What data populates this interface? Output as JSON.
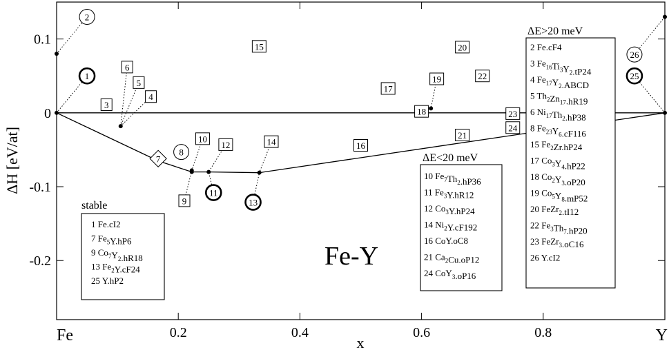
{
  "chart_data": {
    "type": "scatter",
    "title": "Fe-Y",
    "xlabel": "x",
    "ylabel": "ΔH [eV/at]",
    "xlim": [
      0,
      1
    ],
    "ylim": [
      -0.28,
      0.15
    ],
    "x_ticks": [
      {
        "value": 0.2,
        "label": "0.2"
      },
      {
        "value": 0.4,
        "label": "0.4"
      },
      {
        "value": 0.6,
        "label": "0.6"
      },
      {
        "value": 0.8,
        "label": "0.8"
      }
    ],
    "x_edge_labels": [
      {
        "value": 0,
        "label": "Fe"
      },
      {
        "value": 1,
        "label": "Y"
      }
    ],
    "y_ticks": [
      {
        "value": 0.1,
        "label": "0.1"
      },
      {
        "value": 0,
        "label": "0"
      },
      {
        "value": -0.1,
        "label": "-0.1"
      },
      {
        "value": -0.2,
        "label": "-0.2"
      }
    ],
    "grid": false,
    "convex_hull": [
      [
        0,
        0
      ],
      [
        0.1667,
        -0.065
      ],
      [
        0.2222,
        -0.08
      ],
      [
        0.25,
        -0.08
      ],
      [
        0.3333,
        -0.081
      ],
      [
        1,
        0
      ]
    ],
    "zero_line": {
      "from": 0,
      "to": 1
    },
    "points": [
      {
        "x": 0,
        "y": 0
      },
      {
        "x": 0.1053,
        "y": -0.018
      },
      {
        "x": 0.2222,
        "y": -0.078
      },
      {
        "x": 0.2222,
        "y": -0.08
      },
      {
        "x": 0.25,
        "y": -0.08
      },
      {
        "x": 0.3333,
        "y": -0.081
      },
      {
        "x": 0.6154,
        "y": 0.006
      },
      {
        "x": 1,
        "y": 0
      },
      {
        "x": 1,
        "y": 0.13
      },
      {
        "x": 0,
        "y": 0.08
      }
    ],
    "labels": [
      {
        "id": "1",
        "shape": "circle-bold",
        "x": 0.05,
        "y": 0.05,
        "px": 0,
        "py": 0
      },
      {
        "id": "2",
        "shape": "circle",
        "x": 0.05,
        "y": 0.13,
        "px": 0,
        "py": 0.08
      },
      {
        "id": "3",
        "shape": "square",
        "x": 0.082,
        "y": 0.011,
        "px": null,
        "py": null
      },
      {
        "id": "4",
        "shape": "square",
        "x": 0.155,
        "y": 0.022,
        "px": 0.1053,
        "py": -0.018
      },
      {
        "id": "5",
        "shape": "square",
        "x": 0.135,
        "y": 0.041,
        "px": 0.1053,
        "py": -0.018
      },
      {
        "id": "6",
        "shape": "square",
        "x": 0.116,
        "y": 0.062,
        "px": 0.1053,
        "py": -0.018
      },
      {
        "id": "7",
        "shape": "diamond",
        "x": 0.167,
        "y": -0.062,
        "px": null,
        "py": null
      },
      {
        "id": "8",
        "shape": "circle",
        "x": 0.205,
        "y": -0.053,
        "px": null,
        "py": null
      },
      {
        "id": "9",
        "shape": "square",
        "x": 0.21,
        "y": -0.119,
        "px": 0.2222,
        "py": -0.078
      },
      {
        "id": "10",
        "shape": "square",
        "x": 0.24,
        "y": -0.035,
        "px": 0.2222,
        "py": -0.078
      },
      {
        "id": "11",
        "shape": "circle-bold",
        "x": 0.258,
        "y": -0.108,
        "px": 0.25,
        "py": -0.08
      },
      {
        "id": "12",
        "shape": "square",
        "x": 0.278,
        "y": -0.043,
        "px": 0.25,
        "py": -0.08
      },
      {
        "id": "13",
        "shape": "circle-bold",
        "x": 0.323,
        "y": -0.121,
        "px": 0.3333,
        "py": -0.081
      },
      {
        "id": "14",
        "shape": "square",
        "x": 0.353,
        "y": -0.039,
        "px": 0.3333,
        "py": -0.081
      },
      {
        "id": "15",
        "shape": "square",
        "x": 0.333,
        "y": 0.09,
        "px": null,
        "py": null
      },
      {
        "id": "16",
        "shape": "square",
        "x": 0.5,
        "y": -0.044,
        "px": null,
        "py": null
      },
      {
        "id": "17",
        "shape": "square",
        "x": 0.545,
        "y": 0.033,
        "px": null,
        "py": null
      },
      {
        "id": "18",
        "shape": "square",
        "x": 0.6,
        "y": 0.002,
        "px": 0.6154,
        "py": 0.006
      },
      {
        "id": "19",
        "shape": "square",
        "x": 0.625,
        "y": 0.046,
        "px": 0.6154,
        "py": 0.006
      },
      {
        "id": "20",
        "shape": "square",
        "x": 0.667,
        "y": 0.089,
        "px": null,
        "py": null
      },
      {
        "id": "21",
        "shape": "square",
        "x": 0.667,
        "y": -0.03,
        "px": null,
        "py": null
      },
      {
        "id": "22",
        "shape": "square",
        "x": 0.7,
        "y": 0.05,
        "px": null,
        "py": null
      },
      {
        "id": "23",
        "shape": "square",
        "x": 0.75,
        "y": -0.001,
        "px": null,
        "py": null
      },
      {
        "id": "24",
        "shape": "square",
        "x": 0.75,
        "y": -0.02,
        "px": null,
        "py": null
      },
      {
        "id": "25",
        "shape": "circle-bold",
        "x": 0.95,
        "y": 0.05,
        "px": 1,
        "py": 0
      },
      {
        "id": "26",
        "shape": "circle",
        "x": 0.95,
        "y": 0.079,
        "px": 1,
        "py": 0.13
      }
    ],
    "legends": [
      {
        "name": "stable",
        "title": "stable",
        "entries": [
          [
            "1 Fe.cI2"
          ],
          [
            "7 Fe",
            {
              "sub": "5"
            },
            "Y.hP6"
          ],
          [
            "9 Co",
            {
              "sub": "7"
            },
            "Y",
            {
              "sub": "2"
            },
            ".hR18"
          ],
          [
            "13 Fe",
            {
              "sub": "2"
            },
            "Y.cF24"
          ],
          [
            "25 Y.hP2"
          ]
        ]
      },
      {
        "name": "lt20",
        "title": "ΔE<20 meV",
        "entries": [
          [
            "10 Fe",
            {
              "sub": "7"
            },
            "Th",
            {
              "sub": "2"
            },
            ".hP36"
          ],
          [
            "11 Fe",
            {
              "sub": "3"
            },
            "Y.hR12"
          ],
          [
            "12 Co",
            {
              "sub": "3"
            },
            "Y.hP24"
          ],
          [
            "14 Ni",
            {
              "sub": "2"
            },
            "Y.cF192"
          ],
          [
            "16 CoY.oC8"
          ],
          [
            "21 Ca",
            {
              "sub": "2"
            },
            "Cu.oP12"
          ],
          [
            "24 CoY",
            {
              "sub": "3"
            },
            ".oP16"
          ]
        ]
      },
      {
        "name": "gt20",
        "title": "ΔE>20 meV",
        "entries": [
          [
            "2 Fe.cF4"
          ],
          [
            "3 Fe",
            {
              "sub": "16"
            },
            "Ti",
            {
              "sub": "3"
            },
            "Y",
            {
              "sub": "2"
            },
            ".tP24"
          ],
          [
            "4 Fe",
            {
              "sub": "17"
            },
            "Y",
            {
              "sub": "2"
            },
            ".ABCD"
          ],
          [
            "5 Th",
            {
              "sub": "2"
            },
            "Zn",
            {
              "sub": "17"
            },
            ".hR19"
          ],
          [
            "6 Ni",
            {
              "sub": "17"
            },
            "Th",
            {
              "sub": "2"
            },
            ".hP38"
          ],
          [
            "8 Fe",
            {
              "sub": "23"
            },
            "Y",
            {
              "sub": "6"
            },
            ".cF116"
          ],
          [
            "15 Fe",
            {
              "sub": "2"
            },
            "Zr.hP24"
          ],
          [
            "17 Co",
            {
              "sub": "3"
            },
            "Y",
            {
              "sub": "4"
            },
            ".hP22"
          ],
          [
            "18 Co",
            {
              "sub": "2"
            },
            "Y",
            {
              "sub": "3"
            },
            ".oP20"
          ],
          [
            "19 Co",
            {
              "sub": "5"
            },
            "Y",
            {
              "sub": "8"
            },
            ".mP52"
          ],
          [
            "20 FeZr",
            {
              "sub": "2"
            },
            ".tI12"
          ],
          [
            "22 Fe",
            {
              "sub": "3"
            },
            "Th",
            {
              "sub": "7"
            },
            ".hP20"
          ],
          [
            "23 FeZr",
            {
              "sub": "3"
            },
            ".oC16"
          ],
          [
            "26 Y.cI2"
          ]
        ]
      }
    ]
  }
}
